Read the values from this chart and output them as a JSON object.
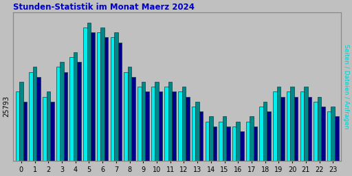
{
  "title": "Stunden-Statistik im Monat Maerz 2024",
  "ylabel": "Seiten / Dateien / Anfragen",
  "xlabel_ticks": [
    0,
    1,
    2,
    3,
    4,
    5,
    6,
    7,
    8,
    9,
    10,
    11,
    12,
    13,
    14,
    15,
    16,
    17,
    18,
    19,
    20,
    21,
    22,
    23
  ],
  "ytick_label": "25793",
  "background_color": "#c0c0c0",
  "plot_bg_color": "#c0c0c0",
  "title_color": "#0000cc",
  "ylabel_color": "#00cccc",
  "bar_colors": [
    "#00eeee",
    "#008888",
    "#000088"
  ],
  "bar_edgecolor": "#004444",
  "v1": [
    25820,
    25860,
    25810,
    25870,
    25890,
    25950,
    25940,
    25930,
    25860,
    25830,
    25830,
    25830,
    25820,
    25790,
    25760,
    25760,
    25750,
    25760,
    25790,
    25820,
    25820,
    25820,
    25800,
    25780
  ],
  "v2": [
    25840,
    25870,
    25820,
    25880,
    25900,
    25960,
    25950,
    25940,
    25870,
    25840,
    25840,
    25840,
    25830,
    25800,
    25770,
    25770,
    25760,
    25770,
    25800,
    25830,
    25830,
    25830,
    25810,
    25790
  ],
  "v3": [
    25800,
    25850,
    25800,
    25860,
    25880,
    25940,
    25930,
    25920,
    25850,
    25820,
    25820,
    25820,
    25810,
    25780,
    25750,
    25750,
    25740,
    25750,
    25780,
    25810,
    25810,
    25810,
    25790,
    25770
  ],
  "ylim_bottom": 25680,
  "ylim_top": 25980,
  "bar_width": 0.28
}
